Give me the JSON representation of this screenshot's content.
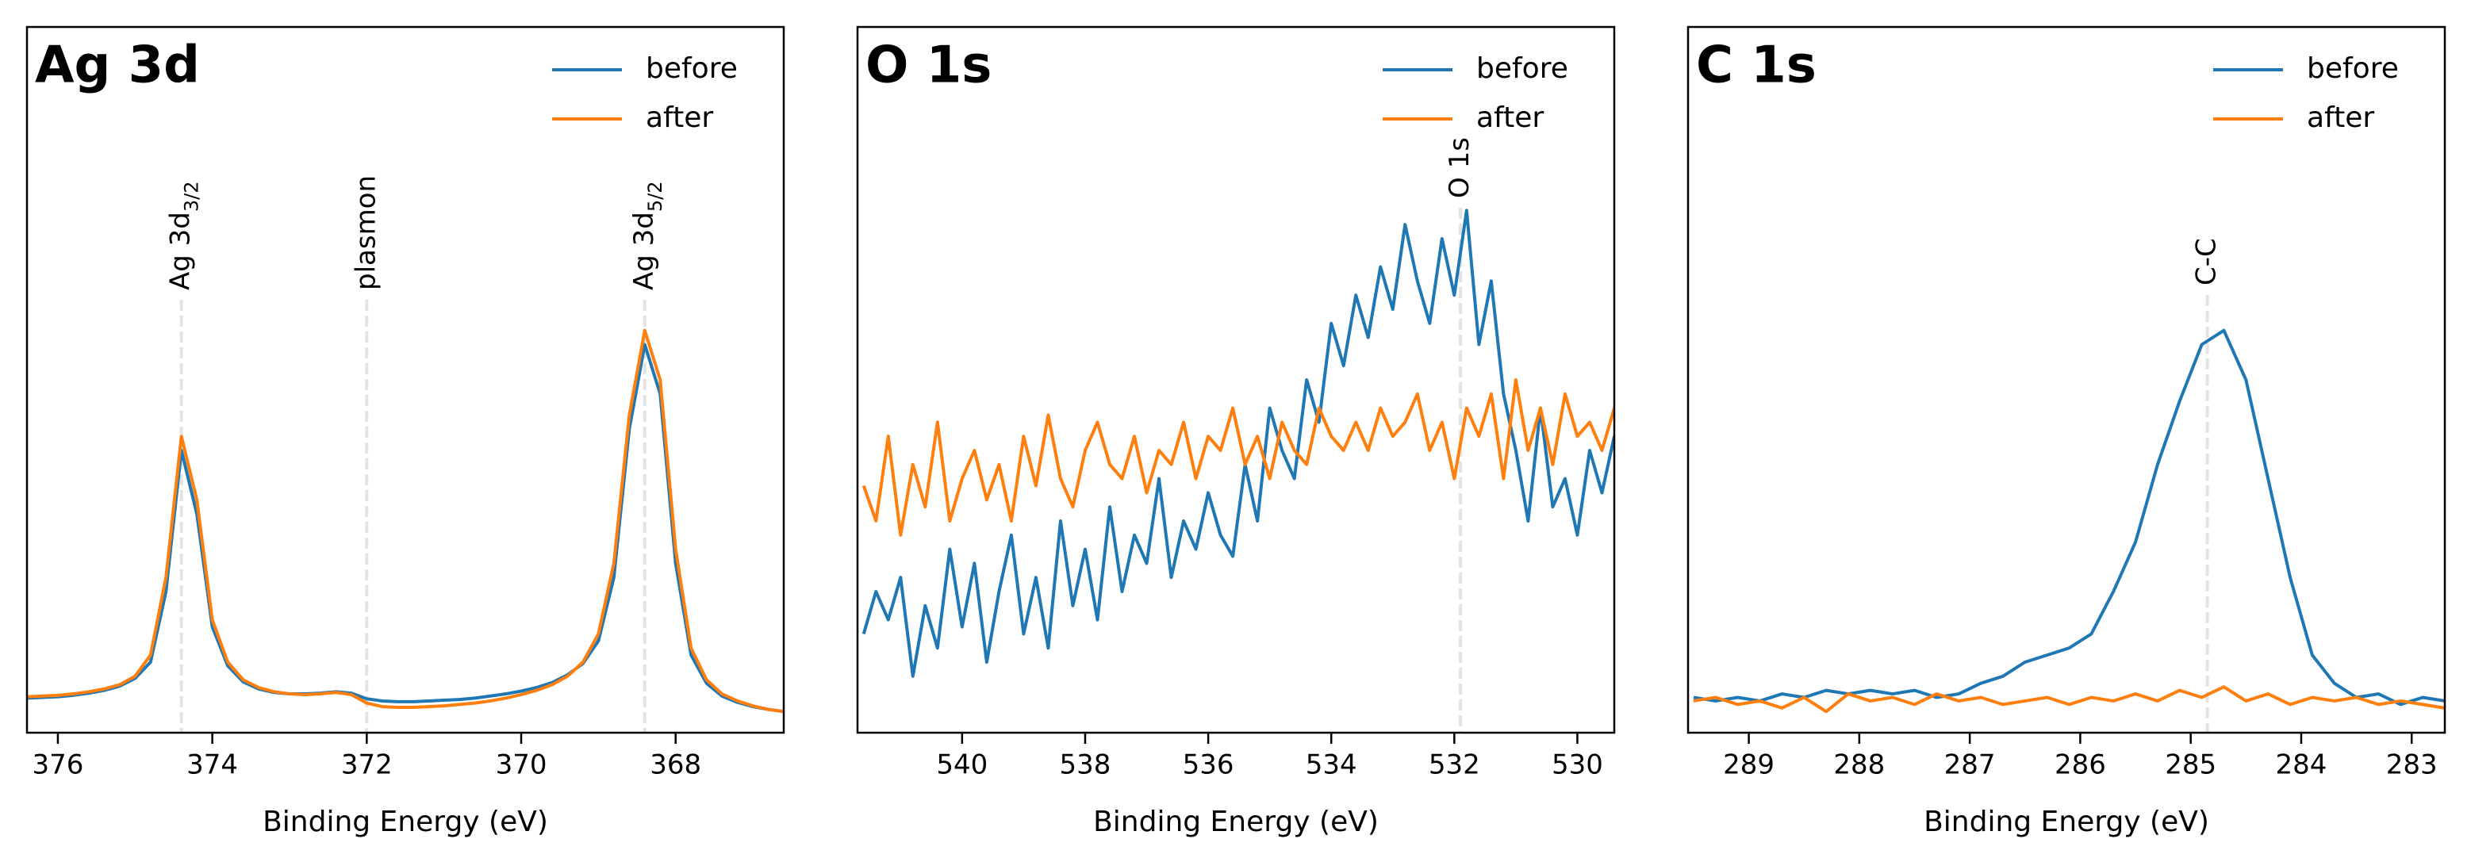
{
  "chart_data": [
    {
      "type": "line",
      "title": "Ag 3d",
      "x_label": "Binding Energy (eV)",
      "xlim": [
        376.4,
        366.6
      ],
      "xticks": [
        376,
        374,
        372,
        370,
        368
      ],
      "ylim": [
        0,
        1
      ],
      "legend": "upper right",
      "x": [
        376.6,
        376.4,
        376.2,
        376.0,
        375.8,
        375.6,
        375.4,
        375.2,
        375.0,
        374.8,
        374.6,
        374.4,
        374.2,
        374.0,
        373.8,
        373.6,
        373.4,
        373.2,
        373.0,
        372.8,
        372.6,
        372.4,
        372.2,
        372.0,
        371.8,
        371.6,
        371.4,
        371.2,
        371.0,
        370.8,
        370.6,
        370.4,
        370.2,
        370.0,
        369.8,
        369.6,
        369.4,
        369.2,
        369.0,
        368.8,
        368.6,
        368.4,
        368.2,
        368.0,
        367.8,
        367.6,
        367.4,
        367.2,
        367.0,
        366.8,
        366.6
      ],
      "series": [
        {
          "name": "before",
          "color": "#1f77b4",
          "values": [
            0.048,
            0.049,
            0.05,
            0.051,
            0.053,
            0.056,
            0.06,
            0.066,
            0.077,
            0.1,
            0.2,
            0.4,
            0.31,
            0.15,
            0.095,
            0.072,
            0.062,
            0.057,
            0.055,
            0.055,
            0.056,
            0.058,
            0.056,
            0.048,
            0.045,
            0.044,
            0.044,
            0.045,
            0.046,
            0.047,
            0.049,
            0.052,
            0.055,
            0.059,
            0.064,
            0.071,
            0.082,
            0.098,
            0.13,
            0.22,
            0.43,
            0.55,
            0.48,
            0.24,
            0.11,
            0.07,
            0.052,
            0.043,
            0.037,
            0.033,
            0.03
          ]
        },
        {
          "name": "after",
          "color": "#ff7f0e",
          "values": [
            0.05,
            0.051,
            0.052,
            0.053,
            0.055,
            0.058,
            0.062,
            0.068,
            0.08,
            0.11,
            0.22,
            0.42,
            0.33,
            0.16,
            0.1,
            0.075,
            0.064,
            0.058,
            0.055,
            0.054,
            0.055,
            0.057,
            0.054,
            0.042,
            0.037,
            0.036,
            0.036,
            0.037,
            0.038,
            0.04,
            0.042,
            0.045,
            0.049,
            0.054,
            0.06,
            0.068,
            0.08,
            0.1,
            0.14,
            0.24,
            0.45,
            0.57,
            0.5,
            0.26,
            0.12,
            0.075,
            0.055,
            0.045,
            0.038,
            0.033,
            0.03
          ]
        }
      ],
      "annotations": [
        {
          "x": 374.4,
          "text": "Ag 3d",
          "sub": "3/2"
        },
        {
          "x": 372.0,
          "text": "plasmon"
        },
        {
          "x": 368.4,
          "text": "Ag 3d",
          "sub": "5/2"
        }
      ]
    },
    {
      "type": "line",
      "title": "O 1s",
      "x_label": "Binding Energy (eV)",
      "xlim": [
        541.7,
        529.4
      ],
      "xticks": [
        540,
        538,
        536,
        534,
        532,
        530
      ],
      "ylim": [
        0,
        1
      ],
      "legend": "upper right",
      "x": [
        541.6,
        541.4,
        541.2,
        541.0,
        540.8,
        540.6,
        540.4,
        540.2,
        540.0,
        539.8,
        539.6,
        539.4,
        539.2,
        539.0,
        538.8,
        538.6,
        538.4,
        538.2,
        538.0,
        537.8,
        537.6,
        537.4,
        537.2,
        537.0,
        536.8,
        536.6,
        536.4,
        536.2,
        536.0,
        535.8,
        535.6,
        535.4,
        535.2,
        535.0,
        534.8,
        534.6,
        534.4,
        534.2,
        534.0,
        533.8,
        533.6,
        533.4,
        533.2,
        533.0,
        532.8,
        532.6,
        532.4,
        532.2,
        532.0,
        531.8,
        531.6,
        531.4,
        531.2,
        531.0,
        530.8,
        530.6,
        530.4,
        530.2,
        530.0,
        529.8,
        529.6,
        529.4
      ],
      "series": [
        {
          "name": "before",
          "color": "#1f77b4",
          "values": [
            0.14,
            0.2,
            0.16,
            0.22,
            0.08,
            0.18,
            0.12,
            0.26,
            0.15,
            0.24,
            0.1,
            0.2,
            0.28,
            0.14,
            0.22,
            0.12,
            0.3,
            0.18,
            0.26,
            0.16,
            0.32,
            0.2,
            0.28,
            0.24,
            0.36,
            0.22,
            0.3,
            0.26,
            0.34,
            0.28,
            0.25,
            0.38,
            0.3,
            0.46,
            0.4,
            0.36,
            0.5,
            0.44,
            0.58,
            0.52,
            0.62,
            0.56,
            0.66,
            0.6,
            0.72,
            0.64,
            0.58,
            0.7,
            0.62,
            0.74,
            0.55,
            0.64,
            0.48,
            0.4,
            0.3,
            0.46,
            0.32,
            0.36,
            0.28,
            0.4,
            0.34,
            0.42
          ]
        },
        {
          "name": "after",
          "color": "#ff7f0e",
          "values": [
            0.35,
            0.3,
            0.42,
            0.28,
            0.38,
            0.32,
            0.44,
            0.3,
            0.36,
            0.4,
            0.33,
            0.38,
            0.3,
            0.42,
            0.35,
            0.45,
            0.36,
            0.32,
            0.4,
            0.44,
            0.38,
            0.36,
            0.42,
            0.34,
            0.4,
            0.38,
            0.44,
            0.36,
            0.42,
            0.4,
            0.46,
            0.38,
            0.42,
            0.36,
            0.44,
            0.4,
            0.38,
            0.46,
            0.42,
            0.4,
            0.44,
            0.4,
            0.46,
            0.42,
            0.44,
            0.48,
            0.4,
            0.44,
            0.36,
            0.46,
            0.42,
            0.48,
            0.36,
            0.5,
            0.4,
            0.46,
            0.38,
            0.48,
            0.42,
            0.44,
            0.4,
            0.46
          ]
        }
      ],
      "annotations": [
        {
          "x": 531.9,
          "text": "O 1s"
        }
      ]
    },
    {
      "type": "line",
      "title": "C 1s",
      "x_label": "Binding Energy (eV)",
      "xlim": [
        289.55,
        282.7
      ],
      "xticks": [
        289,
        288,
        287,
        286,
        285,
        284,
        283
      ],
      "ylim": [
        0,
        1
      ],
      "legend": "upper right",
      "x": [
        289.5,
        289.3,
        289.1,
        288.9,
        288.7,
        288.5,
        288.3,
        288.1,
        287.9,
        287.7,
        287.5,
        287.3,
        287.1,
        286.9,
        286.7,
        286.5,
        286.3,
        286.1,
        285.9,
        285.7,
        285.5,
        285.3,
        285.1,
        284.9,
        284.7,
        284.5,
        284.3,
        284.1,
        283.9,
        283.7,
        283.5,
        283.3,
        283.1,
        282.9,
        282.7
      ],
      "series": [
        {
          "name": "before",
          "color": "#1f77b4",
          "values": [
            0.05,
            0.045,
            0.05,
            0.045,
            0.055,
            0.05,
            0.06,
            0.055,
            0.06,
            0.055,
            0.06,
            0.05,
            0.055,
            0.07,
            0.08,
            0.1,
            0.11,
            0.12,
            0.14,
            0.2,
            0.27,
            0.38,
            0.47,
            0.55,
            0.57,
            0.5,
            0.36,
            0.22,
            0.11,
            0.07,
            0.05,
            0.055,
            0.04,
            0.05,
            0.045
          ]
        },
        {
          "name": "after",
          "color": "#ff7f0e",
          "values": [
            0.045,
            0.05,
            0.04,
            0.045,
            0.035,
            0.05,
            0.03,
            0.055,
            0.045,
            0.05,
            0.04,
            0.055,
            0.045,
            0.05,
            0.04,
            0.045,
            0.05,
            0.04,
            0.05,
            0.045,
            0.055,
            0.045,
            0.06,
            0.05,
            0.065,
            0.045,
            0.055,
            0.04,
            0.05,
            0.045,
            0.05,
            0.04,
            0.045,
            0.04,
            0.035
          ]
        }
      ],
      "annotations": [
        {
          "x": 284.85,
          "text": "C-C"
        }
      ]
    }
  ]
}
